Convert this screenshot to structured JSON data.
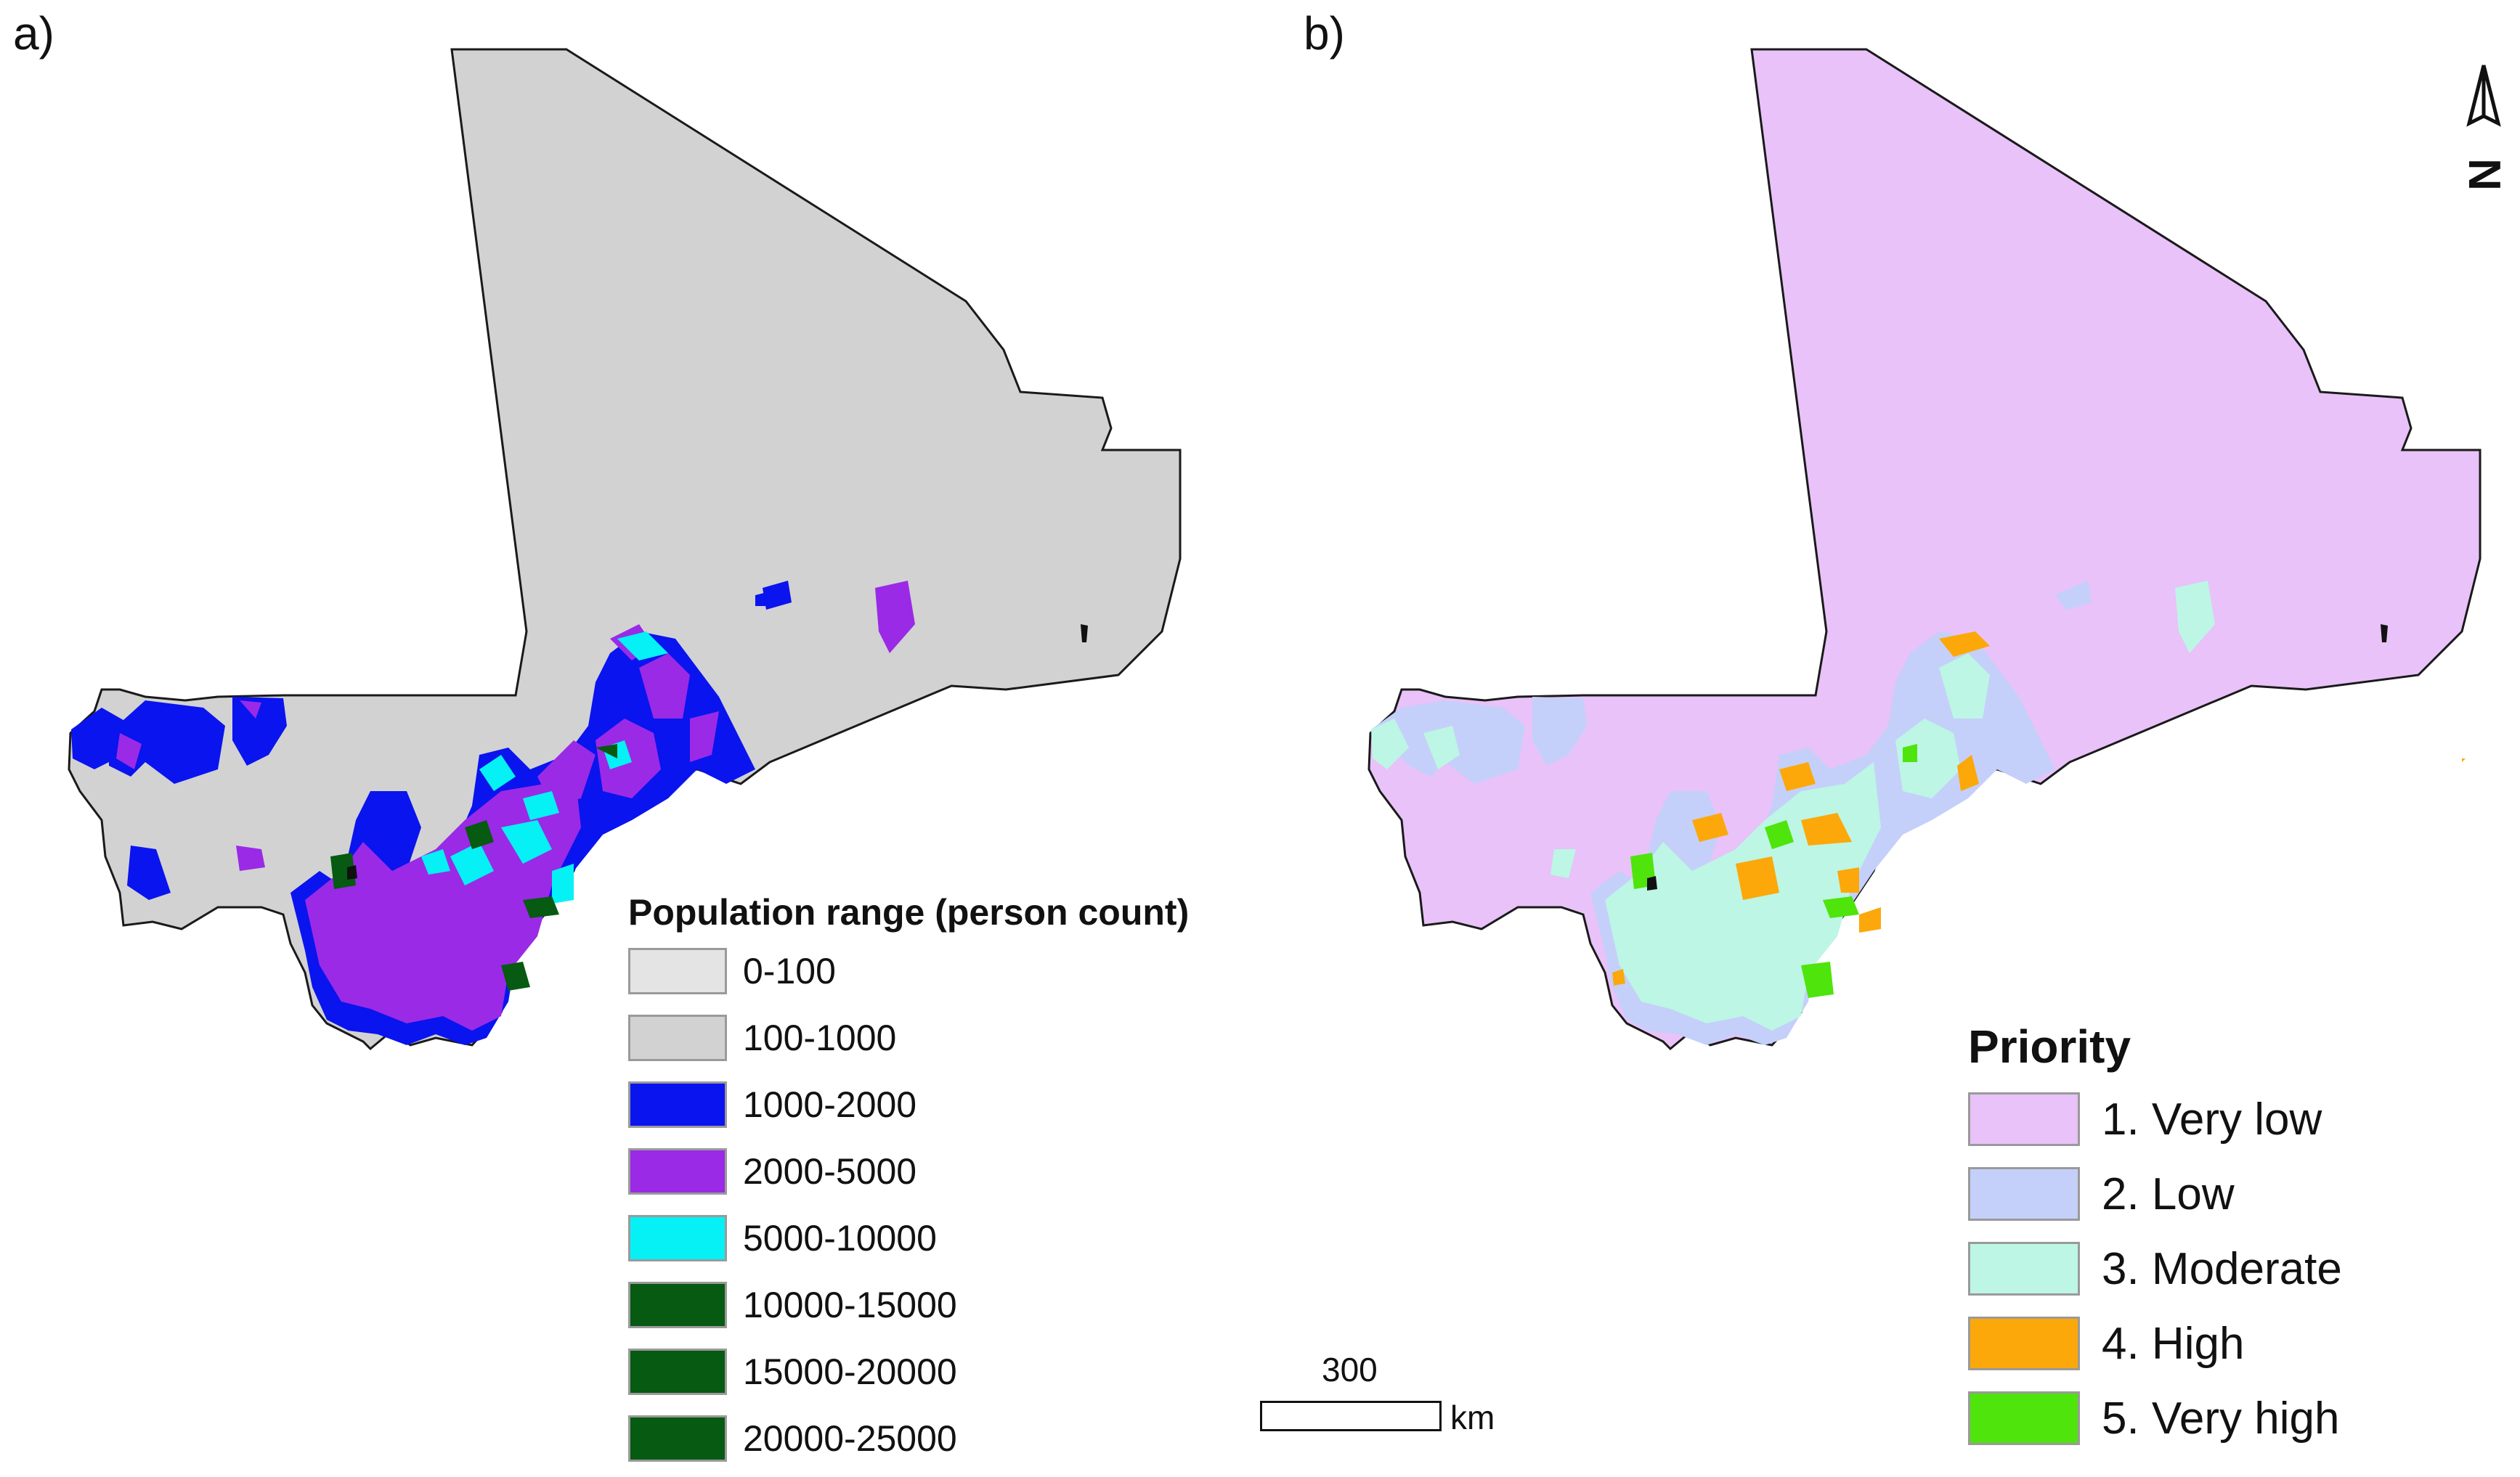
{
  "panels": {
    "a_label": "a)",
    "b_label": "b)"
  },
  "legend_a": {
    "title": "Population range (person count)",
    "items": [
      {
        "label": "0-100",
        "color": "#e4e4e4"
      },
      {
        "label": "100-1000",
        "color": "#d2d2d2"
      },
      {
        "label": "1000-2000",
        "color": "#0a14ee"
      },
      {
        "label": "2000-5000",
        "color": "#9a2ae6"
      },
      {
        "label": "5000-10000",
        "color": "#05f1f6"
      },
      {
        "label": "10000-15000",
        "color": "#065a12"
      },
      {
        "label": "15000-20000",
        "color": "#065a12"
      },
      {
        "label": "20000-25000",
        "color": "#065a12"
      }
    ]
  },
  "legend_b": {
    "title": "Priority",
    "items": [
      {
        "label": "1. Very low",
        "color": "#e8c2f8"
      },
      {
        "label": "2. Low",
        "color": "#c4d0fa"
      },
      {
        "label": "3. Moderate",
        "color": "#bdf6e4"
      },
      {
        "label": "4. High",
        "color": "#fca80a"
      },
      {
        "label": "5. Very high",
        "color": "#4fe40c"
      }
    ]
  },
  "scale": {
    "value": "300",
    "unit": "km"
  },
  "north_arrow": {
    "letter": "N",
    "icon": "north-arrow-icon"
  },
  "map_colors": {
    "a_base": "#d2d2d2",
    "b_base": "#e8c2f8"
  }
}
